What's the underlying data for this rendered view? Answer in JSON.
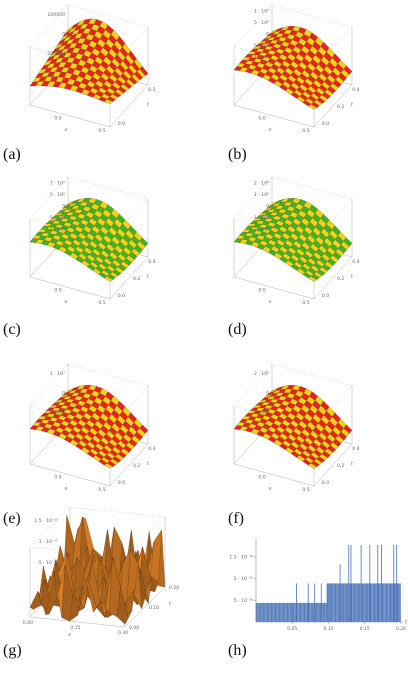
{
  "figure": {
    "panels": [
      {
        "id": "a",
        "label": "(a)",
        "kind": "surface",
        "color_a": "#e8231c",
        "color_b": "#f0d21a",
        "z_ticks": [
          "200000",
          "0",
          "-200000"
        ],
        "x_ticks": [
          "0.0",
          "0.5"
        ],
        "t_ticks": [
          "0.0",
          "0.5"
        ],
        "x_label": "x",
        "t_label": "t"
      },
      {
        "id": "b",
        "label": "(b)",
        "kind": "surface",
        "color_a": "#e8231c",
        "color_b": "#f0d21a",
        "z_ticks": [
          "1 · 10⁷",
          "5 · 10⁶",
          "0",
          "-5 · 10⁶",
          "-1 · 10⁷"
        ],
        "x_ticks": [
          "0.0",
          "0.5"
        ],
        "t_ticks": [
          "0.0",
          "0.2",
          "0.4"
        ],
        "x_label": "x",
        "t_label": "t"
      },
      {
        "id": "c",
        "label": "(c)",
        "kind": "surface",
        "color_a": "#3cb521",
        "color_b": "#f0d21a",
        "z_ticks": [
          "1 · 10⁷",
          "5 · 10⁶",
          "0",
          "-5 · 10⁶",
          "-1 · 10⁷"
        ],
        "x_ticks": [
          "0.0",
          "0.5"
        ],
        "t_ticks": [
          "0.0",
          "0.2",
          "0.4"
        ],
        "x_label": "x",
        "t_label": "t"
      },
      {
        "id": "d",
        "label": "(d)",
        "kind": "surface",
        "color_a": "#3cb521",
        "color_b": "#f0d21a",
        "z_ticks": [
          "2 · 10⁸",
          "1 · 10⁸",
          "0",
          "-1 · 10⁸",
          "-2 · 10⁸"
        ],
        "x_ticks": [
          "0.0",
          "0.5"
        ],
        "t_ticks": [
          "0.0",
          "0.2",
          "0.4"
        ],
        "x_label": "x",
        "t_label": "t"
      },
      {
        "id": "e",
        "label": "(e)",
        "kind": "surface",
        "color_a": "#e8231c",
        "color_b": "#f0d21a",
        "z_ticks": [
          "1 · 10⁷",
          "0",
          "-1 · 10⁷"
        ],
        "x_ticks": [
          "0.0",
          "0.5"
        ],
        "t_ticks": [
          "0.0",
          "0.2",
          "0.4"
        ],
        "x_label": "x",
        "t_label": "t"
      },
      {
        "id": "f",
        "label": "(f)",
        "kind": "surface",
        "color_a": "#e8231c",
        "color_b": "#f0d21a",
        "z_ticks": [
          "2 · 10⁸",
          "0",
          "-2 · 10⁸"
        ],
        "x_ticks": [
          "0.0",
          "0.5"
        ],
        "t_ticks": [
          "0.0",
          "0.2",
          "0.4"
        ],
        "x_label": "x",
        "t_label": "t"
      },
      {
        "id": "g",
        "label": "(g)",
        "kind": "error-surface",
        "color": "#c8781e",
        "z_ticks": [
          "1.5 · 10⁻¹⁵",
          "1 · 10⁻¹⁵",
          "5 · 10⁻¹⁶",
          "0"
        ],
        "x_ticks": [
          "0.00",
          "0.15",
          "0.30"
        ],
        "t_ticks": [
          "0.00",
          "0.10",
          "0.20"
        ],
        "x_label": "x",
        "t_label": "t"
      },
      {
        "id": "h",
        "label": "(h)",
        "kind": "error-bars",
        "color": "#4a73b8",
        "y_ticks": [
          "1.5 · 10⁻¹⁵",
          "1 · 10⁻¹⁵",
          "5 · 10⁻¹⁶"
        ],
        "x_ticks": [
          "0.05",
          "0.10",
          "0.15",
          "0.20"
        ],
        "x_label": "t"
      }
    ]
  },
  "chart_data": {
    "type": "bar",
    "xlim": [
      0,
      0.2
    ],
    "ylim": [
      0,
      1.8e-15
    ],
    "x_ticks": [
      0.05,
      0.1,
      0.15,
      0.2
    ],
    "y_ticks": [
      5e-16,
      1e-15,
      1.5e-15
    ],
    "xlabel": "t",
    "series": [
      {
        "color": "#4a73b8",
        "segments": [
          {
            "t_from": 0.0,
            "t_to": 0.052,
            "value": 4.4e-16
          },
          {
            "t_from": 0.052,
            "t_to": 0.098,
            "value": 4.4e-16
          },
          {
            "t_from": 0.098,
            "t_to": 0.2,
            "value": 8.9e-16
          }
        ],
        "spikes": [
          {
            "t": 0.056,
            "value": 8.9e-16
          },
          {
            "t": 0.072,
            "value": 8.9e-16
          },
          {
            "t": 0.081,
            "value": 8.9e-16
          },
          {
            "t": 0.09,
            "value": 8.9e-16
          },
          {
            "t": 0.101,
            "value": 8.9e-16
          },
          {
            "t": 0.116,
            "value": 1.33e-15
          },
          {
            "t": 0.128,
            "value": 1.78e-15
          },
          {
            "t": 0.131,
            "value": 1.78e-15
          },
          {
            "t": 0.145,
            "value": 1.78e-15
          },
          {
            "t": 0.157,
            "value": 1.78e-15
          },
          {
            "t": 0.168,
            "value": 1.78e-15
          },
          {
            "t": 0.173,
            "value": 1.78e-15
          },
          {
            "t": 0.19,
            "value": 1.78e-15
          },
          {
            "t": 0.194,
            "value": 1.78e-15
          }
        ]
      }
    ]
  }
}
